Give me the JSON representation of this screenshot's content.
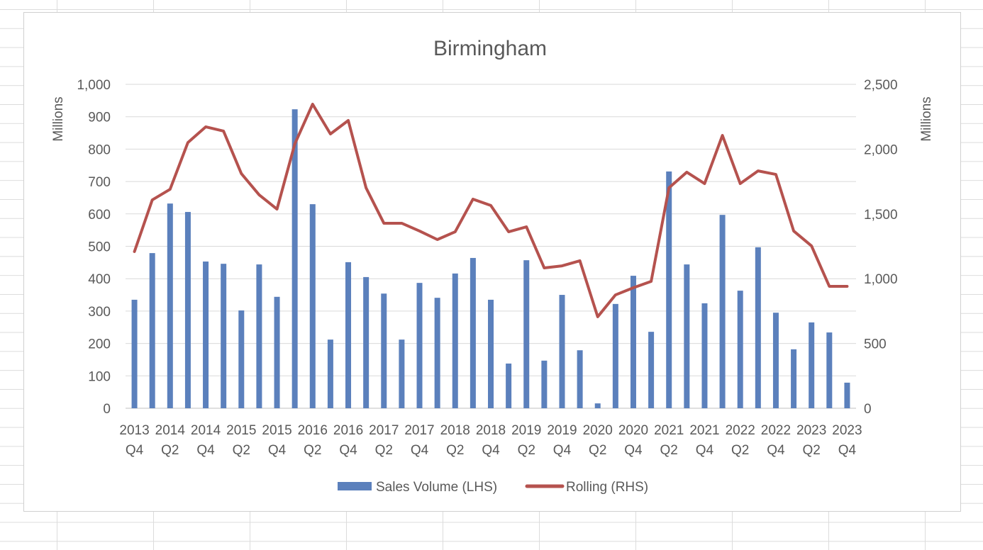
{
  "chart_data": {
    "type": "bar+line",
    "title": "Birmingham",
    "ylabel_left": "Millions",
    "ylabel_right": "Millions",
    "ylim_left": [
      0,
      1000
    ],
    "ylim_right": [
      0,
      2500
    ],
    "yticks_left": [
      "0",
      "100",
      "200",
      "300",
      "400",
      "500",
      "600",
      "700",
      "800",
      "900",
      "1,000"
    ],
    "yticks_right": [
      "0",
      "500",
      "1,000",
      "1,500",
      "2,000",
      "2,500"
    ],
    "grid": true,
    "legend_position": "bottom",
    "categories": [
      "2013 Q4",
      "2014 Q1",
      "2014 Q2",
      "2014 Q3",
      "2014 Q4",
      "2015 Q1",
      "2015 Q2",
      "2015 Q3",
      "2015 Q4",
      "2016 Q1",
      "2016 Q2",
      "2016 Q3",
      "2016 Q4",
      "2017 Q1",
      "2017 Q2",
      "2017 Q3",
      "2017 Q4",
      "2018 Q1",
      "2018 Q2",
      "2018 Q3",
      "2018 Q4",
      "2019 Q1",
      "2019 Q2",
      "2019 Q3",
      "2019 Q4",
      "2020 Q1",
      "2020 Q2",
      "2020 Q3",
      "2020 Q4",
      "2021 Q1",
      "2021 Q2",
      "2021 Q3",
      "2021 Q4",
      "2022 Q1",
      "2022 Q2",
      "2022 Q3",
      "2022 Q4",
      "2023 Q1",
      "2023 Q2",
      "2023 Q3",
      "2023 Q4"
    ],
    "x_tick_labels": [
      [
        "2013",
        "Q4"
      ],
      [
        "2014",
        "Q2"
      ],
      [
        "2014",
        "Q4"
      ],
      [
        "2015",
        "Q2"
      ],
      [
        "2015",
        "Q4"
      ],
      [
        "2016",
        "Q2"
      ],
      [
        "2016",
        "Q4"
      ],
      [
        "2017",
        "Q2"
      ],
      [
        "2017",
        "Q4"
      ],
      [
        "2018",
        "Q2"
      ],
      [
        "2018",
        "Q4"
      ],
      [
        "2019",
        "Q2"
      ],
      [
        "2019",
        "Q4"
      ],
      [
        "2020",
        "Q2"
      ],
      [
        "2020",
        "Q4"
      ],
      [
        "2021",
        "Q2"
      ],
      [
        "2021",
        "Q4"
      ],
      [
        "2022",
        "Q2"
      ],
      [
        "2022",
        "Q4"
      ],
      [
        "2023",
        "Q2"
      ],
      [
        "2023",
        "Q4"
      ]
    ],
    "series": [
      {
        "name": "Sales Volume (LHS)",
        "type": "bar",
        "axis": "left",
        "color": "#5B80BC",
        "values": [
          335,
          479,
          632,
          606,
          453,
          446,
          302,
          444,
          344,
          923,
          630,
          212,
          451,
          405,
          354,
          212,
          387,
          341,
          416,
          464,
          335,
          138,
          457,
          147,
          350,
          179,
          15,
          322,
          409,
          236,
          731,
          444,
          324,
          597,
          363,
          497,
          295,
          182,
          265,
          234,
          79
        ]
      },
      {
        "name": "Rolling (RHS)",
        "type": "line",
        "axis": "right",
        "color": "#B5524E",
        "values": [
          1209,
          1608,
          1690,
          2051,
          2172,
          2139,
          1811,
          1647,
          1537,
          2040,
          2347,
          2117,
          2221,
          1701,
          1428,
          1428,
          1368,
          1302,
          1362,
          1614,
          1565,
          1362,
          1400,
          1083,
          1099,
          1138,
          706,
          875,
          930,
          979,
          1701,
          1822,
          1734,
          2106,
          1734,
          1832,
          1805,
          1368,
          1253,
          941,
          941
        ]
      }
    ]
  }
}
